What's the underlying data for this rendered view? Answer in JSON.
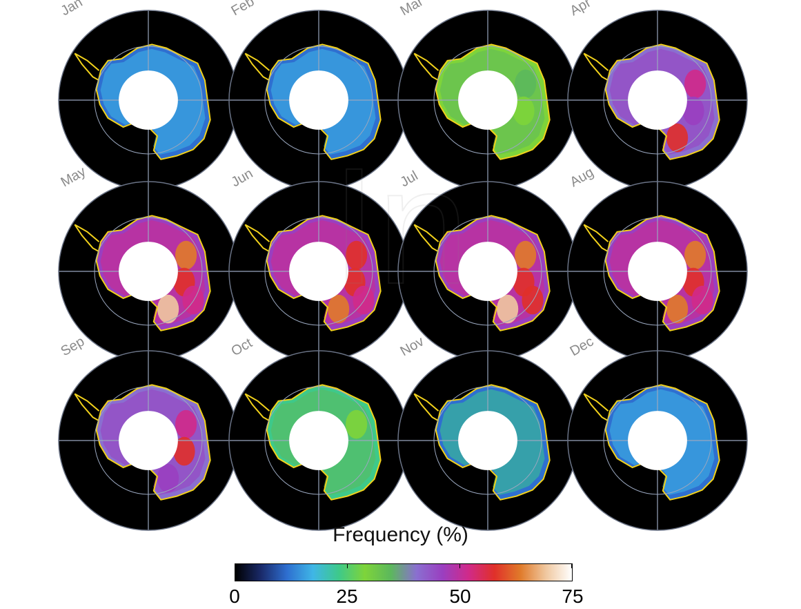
{
  "panels": [
    {
      "month": "Jan",
      "level": 0.12,
      "hotspots": []
    },
    {
      "month": "Feb",
      "level": 0.16,
      "hotspots": []
    },
    {
      "month": "Mar",
      "level": 0.36,
      "hotspots": [
        0.45,
        0.4
      ]
    },
    {
      "month": "Apr",
      "level": 0.5,
      "hotspots": [
        0.7,
        0.6,
        0.8
      ]
    },
    {
      "month": "May",
      "level": 0.62,
      "hotspots": [
        0.85,
        0.8,
        0.9,
        0.7
      ]
    },
    {
      "month": "Jun",
      "level": 0.6,
      "hotspots": [
        0.8,
        0.75,
        0.85,
        0.7
      ]
    },
    {
      "month": "Jul",
      "level": 0.62,
      "hotspots": [
        0.85,
        0.8,
        0.9,
        0.75
      ]
    },
    {
      "month": "Aug",
      "level": 0.6,
      "hotspots": [
        0.85,
        0.75,
        0.85,
        0.7
      ]
    },
    {
      "month": "Sep",
      "level": 0.5,
      "hotspots": [
        0.7,
        0.75,
        0.6
      ]
    },
    {
      "month": "Oct",
      "level": 0.34,
      "hotspots": [
        0.4
      ]
    },
    {
      "month": "Nov",
      "level": 0.18,
      "hotspots": []
    },
    {
      "month": "Dec",
      "level": 0.12,
      "hotspots": []
    }
  ],
  "colorbar": {
    "title": "Frequency (%)",
    "min": 0,
    "max": 75,
    "ticks": [
      "0",
      "25",
      "50",
      "75"
    ],
    "colors": [
      "#000000",
      "#1a2a6a",
      "#2e6fd0",
      "#3fb6e6",
      "#3ec98a",
      "#7ed43a",
      "#5cb85c",
      "#8a6fd0",
      "#9a3fc0",
      "#d02a8a",
      "#e0302a",
      "#e07a2a",
      "#f0c8a0",
      "#ffffff"
    ]
  },
  "watermark_text": "In",
  "coastline_color": "#f2d21b",
  "grid_color": "#9aa7bf"
}
